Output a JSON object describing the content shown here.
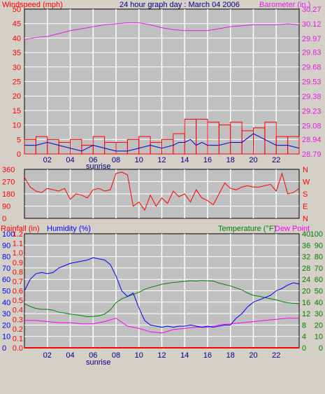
{
  "header": {
    "windspeed_label": "Windspeed (mph)",
    "title": "24 hour graph day : March 04 2006",
    "barometer_label": "Barometer (in.)"
  },
  "lower_header": {
    "rainfall_label": "Rainfall (in)",
    "humidity_label": "Humidity (%)",
    "temperature_label": "Temperature (°F)",
    "dewpoint_label": "Dew Point"
  },
  "sunrise_label": "sunrise",
  "colors": {
    "windspeed": "#ff0000",
    "wind_gust": "#ff0000",
    "wind_avg": "#0000cc",
    "barometer": "#e020e0",
    "wind_dir": "#ff0000",
    "humidity": "#0000ff",
    "temperature": "#008000",
    "dewpoint": "#ff00ff",
    "plot_bg": "#c0c0c0",
    "grid": "#ffffff"
  },
  "chart_data": [
    {
      "type": "line",
      "title": "24 hour graph day : March 04 2006",
      "x_ticks": [
        "02",
        "04",
        "06",
        "08",
        "10",
        "12",
        "14",
        "16",
        "18",
        "20",
        "22"
      ],
      "xlim": [
        0,
        24
      ],
      "y_left": {
        "label": "Windspeed (mph)",
        "ylim": [
          0,
          50
        ],
        "ticks": [
          0,
          5,
          10,
          15,
          20,
          25,
          30,
          35,
          40,
          45,
          50
        ]
      },
      "y_right": {
        "label": "Barometer (in.)",
        "ylim": [
          28.79,
          30.27
        ],
        "ticks": [
          "28.79",
          "28.94",
          "29.08",
          "29.23",
          "29.38",
          "29.53",
          "29.68",
          "29.83",
          "29.97",
          "30.12",
          "30.27"
        ]
      },
      "series": [
        {
          "key": "barometer",
          "x": [
            0,
            1,
            2,
            3,
            4,
            5,
            6,
            7,
            8,
            9,
            10,
            11,
            12,
            13,
            14,
            15,
            16,
            17,
            18,
            19,
            20,
            21,
            22,
            23,
            24
          ],
          "values": [
            29.96,
            29.98,
            29.99,
            30.02,
            30.05,
            30.07,
            30.09,
            30.11,
            30.12,
            30.13,
            30.13,
            30.11,
            30.08,
            30.06,
            30.05,
            30.05,
            30.05,
            30.07,
            30.09,
            30.1,
            30.11,
            30.11,
            30.11,
            30.12,
            30.11
          ]
        },
        {
          "key": "wind_avg",
          "x": [
            0,
            1,
            2,
            3,
            4,
            5,
            5.5,
            6,
            7,
            8,
            9,
            10,
            11,
            12,
            13,
            13.5,
            14,
            14.5,
            15,
            15.5,
            16,
            17,
            18,
            19,
            20,
            21,
            22,
            23,
            24
          ],
          "values": [
            3,
            3,
            4,
            3,
            2,
            1,
            2,
            3,
            2,
            1,
            1,
            2,
            3,
            2,
            3,
            4,
            4,
            5,
            3,
            4,
            3,
            3,
            4,
            4,
            7,
            5,
            3,
            3,
            2
          ]
        },
        {
          "key": "wind_gust",
          "x": [
            0,
            1,
            2,
            3,
            4,
            5,
            6,
            7,
            8,
            9,
            10,
            11,
            12,
            13,
            14,
            15,
            16,
            17,
            18,
            19,
            20,
            21,
            22,
            23,
            24
          ],
          "values": [
            5,
            6,
            5,
            4,
            5,
            3,
            6,
            4,
            4,
            5,
            6,
            4,
            5,
            7,
            12,
            12,
            11,
            10,
            11,
            8,
            9,
            11,
            6,
            6,
            6
          ]
        }
      ]
    },
    {
      "type": "scatter",
      "x_ticks": [
        "02",
        "04",
        "06",
        "08",
        "10",
        "12",
        "14",
        "16",
        "18",
        "20",
        "22"
      ],
      "xlim": [
        0,
        24
      ],
      "y_left": {
        "ylim": [
          0,
          360
        ],
        "ticks": [
          0,
          90,
          180,
          270,
          360
        ]
      },
      "y_right": {
        "ticks": [
          "N",
          "E",
          "S",
          "W",
          "N"
        ]
      },
      "series": [
        {
          "key": "wind_dir",
          "x": [
            0,
            0.5,
            1,
            1.5,
            2,
            2.5,
            3,
            3.5,
            4,
            4.5,
            5,
            5.5,
            6,
            6.5,
            7,
            7.5,
            8,
            8.5,
            9,
            9.5,
            10,
            10.5,
            11,
            11.5,
            12,
            12.5,
            13,
            13.5,
            14,
            14.5,
            15,
            15.5,
            16,
            16.5,
            17,
            17.5,
            18,
            18.5,
            19,
            19.5,
            20,
            20.5,
            21,
            21.5,
            22,
            22.5,
            23,
            23.5,
            24
          ],
          "values": [
            300,
            230,
            200,
            190,
            220,
            210,
            200,
            220,
            140,
            180,
            170,
            150,
            210,
            220,
            200,
            210,
            330,
            340,
            320,
            90,
            120,
            60,
            170,
            90,
            150,
            110,
            200,
            160,
            180,
            120,
            210,
            150,
            130,
            100,
            180,
            260,
            220,
            210,
            230,
            240,
            230,
            230,
            240,
            250,
            200,
            330,
            180,
            190,
            220
          ]
        }
      ]
    },
    {
      "type": "line",
      "x_ticks": [
        "02",
        "04",
        "06",
        "08",
        "10",
        "12",
        "14",
        "16",
        "18",
        "20",
        "22"
      ],
      "xlim": [
        0,
        24
      ],
      "y_rain": {
        "label": "Rainfall (in)",
        "ylim": [
          0,
          1.2
        ],
        "ticks": [
          "0.0",
          "0.1",
          "0.2",
          "0.3",
          "0.4",
          "0.5",
          "0.6",
          "0.7",
          "0.8",
          "0.9",
          "1.0",
          "1.1",
          "1.2"
        ]
      },
      "y_humidity": {
        "label": "Humidity (%)",
        "ylim": [
          0,
          100
        ],
        "ticks": [
          0,
          10,
          20,
          30,
          40,
          50,
          60,
          70,
          80,
          90,
          100
        ]
      },
      "y_temp": {
        "label": "Temperature (°F)",
        "ylim": [
          0,
          40
        ],
        "ticks": [
          0,
          4,
          8,
          12,
          16,
          20,
          24,
          28,
          32,
          36,
          40
        ]
      },
      "y_dew": {
        "label": "Dew Point",
        "ylim": [
          0,
          100
        ],
        "ticks": [
          0,
          10,
          20,
          30,
          40,
          50,
          60,
          70,
          80,
          90,
          100
        ]
      },
      "series": [
        {
          "key": "rainfall",
          "x": [
            0,
            24
          ],
          "values": [
            0,
            0
          ]
        },
        {
          "key": "humidity",
          "x": [
            0,
            0.5,
            1,
            1.5,
            2,
            2.5,
            3,
            3.5,
            4,
            4.5,
            5,
            5.5,
            6,
            6.5,
            7,
            7.5,
            8,
            8.5,
            9,
            9.5,
            10,
            10.5,
            11,
            11.5,
            12,
            12.5,
            13,
            13.5,
            14,
            14.5,
            15,
            15.5,
            16,
            16.5,
            17,
            17.5,
            18,
            18.5,
            19,
            19.5,
            20,
            20.5,
            21,
            21.5,
            22,
            22.5,
            23,
            23.5,
            24
          ],
          "values": [
            50,
            60,
            65,
            66,
            65,
            66,
            70,
            72,
            74,
            75,
            76,
            77,
            79,
            78,
            77,
            73,
            63,
            50,
            45,
            48,
            35,
            24,
            20,
            19,
            18,
            19,
            18,
            19,
            19,
            20,
            19,
            18,
            19,
            18,
            19,
            20,
            20,
            26,
            30,
            36,
            40,
            42,
            44,
            46,
            50,
            52,
            55,
            57,
            56
          ]
        },
        {
          "key": "temperature",
          "x": [
            0,
            0.5,
            1,
            1.5,
            2,
            2.5,
            3,
            3.5,
            4,
            4.5,
            5,
            5.5,
            6,
            6.5,
            7,
            7.5,
            8,
            8.5,
            9,
            9.5,
            10,
            10.5,
            11,
            11.5,
            12,
            12.5,
            13,
            13.5,
            14,
            14.5,
            15,
            15.5,
            16,
            16.5,
            17,
            17.5,
            18,
            18.5,
            19,
            19.5,
            20,
            20.5,
            21,
            21.5,
            22,
            22.5,
            23,
            23.5,
            24
          ],
          "values": [
            15.5,
            14.5,
            13.8,
            13.5,
            13.5,
            13.2,
            12.5,
            12.2,
            11.8,
            11.6,
            11.3,
            10.9,
            11.0,
            11.2,
            11.8,
            13.3,
            15.8,
            17.2,
            18.0,
            18.7,
            19.5,
            20.5,
            21.2,
            21.7,
            22.3,
            22.6,
            22.9,
            23.1,
            23.3,
            23.5,
            23.4,
            23.6,
            23.5,
            23.4,
            22.7,
            22.2,
            21.7,
            21.0,
            20.3,
            19.2,
            18.4,
            18.1,
            17.6,
            17.2,
            16.8,
            16.2,
            15.8,
            15.6,
            15.5
          ]
        },
        {
          "key": "dewpoint",
          "x": [
            0,
            1,
            2,
            3,
            4,
            5,
            6,
            7,
            8,
            9,
            10,
            11,
            12,
            13,
            14,
            15,
            16,
            17,
            18,
            19,
            20,
            21,
            22,
            23,
            24
          ],
          "values": [
            24,
            24,
            23,
            22,
            22,
            21,
            21,
            23,
            26,
            19,
            17,
            14,
            13,
            16,
            17,
            18,
            18,
            20,
            21,
            22,
            23,
            24,
            25,
            26,
            26
          ]
        }
      ]
    }
  ]
}
